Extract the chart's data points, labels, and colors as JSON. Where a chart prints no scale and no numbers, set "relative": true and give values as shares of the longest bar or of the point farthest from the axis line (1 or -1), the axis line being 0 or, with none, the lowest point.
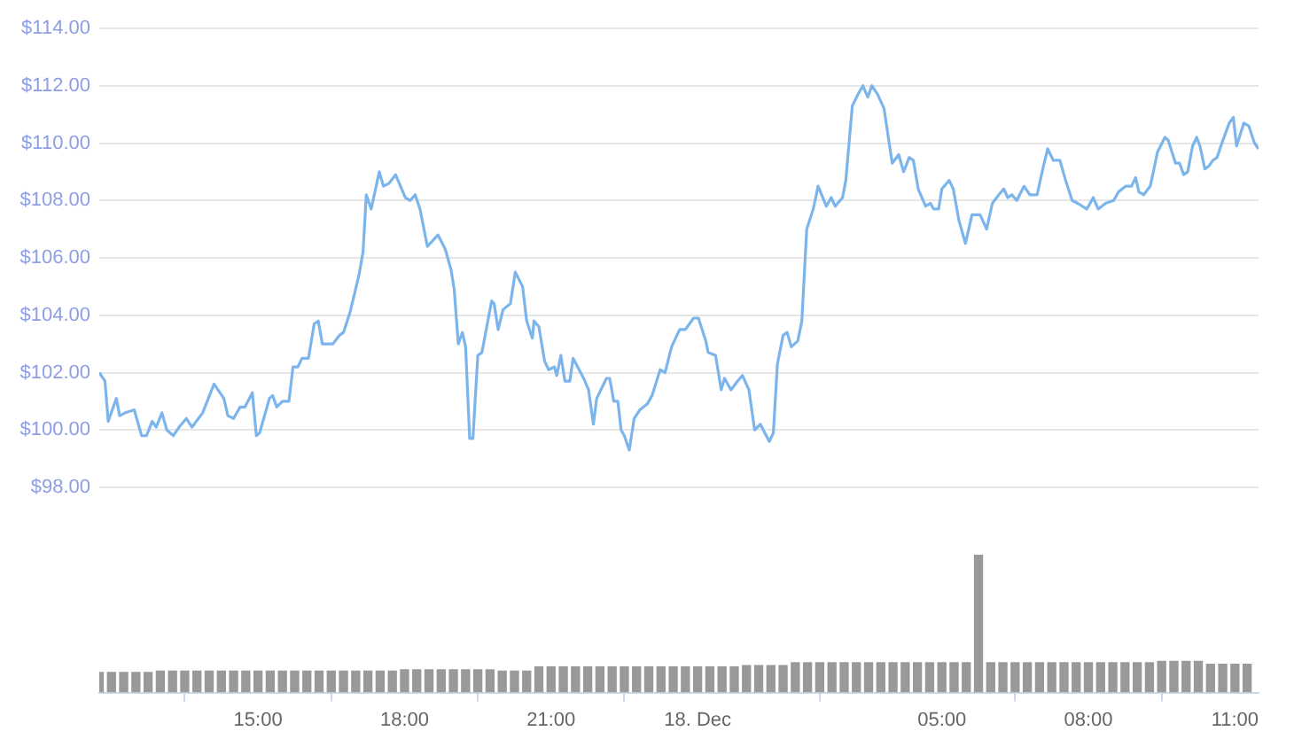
{
  "chart_data": [
    {
      "type": "line",
      "grid": "y",
      "legend": false,
      "tick_labels": "y",
      "marker": "none",
      "line_style": "solid",
      "xlim": [
        "--12-17T11:45",
        "--12-18T11:29"
      ],
      "ylim": [
        98,
        114
      ],
      "yticks": [
        {
          "value": 98,
          "label": "$98.00"
        },
        {
          "value": 100,
          "label": "$100.00"
        },
        {
          "value": 102,
          "label": "$102.00"
        },
        {
          "value": 104,
          "label": "$104.00"
        },
        {
          "value": 106,
          "label": "$106.00"
        },
        {
          "value": 108,
          "label": "$108.00"
        },
        {
          "value": 110,
          "label": "$110.00"
        },
        {
          "value": 112,
          "label": "$112.00"
        },
        {
          "value": 114,
          "label": "$114.00"
        }
      ],
      "series": [
        {
          "color": "#7cb5ec",
          "x": [
            "--12-17T11:45",
            "--12-17T11:52",
            "--12-17T11:56",
            "--12-17T12:06",
            "--12-17T12:10",
            "--12-17T12:17",
            "--12-17T12:28",
            "--12-17T12:37",
            "--12-17T12:43",
            "--12-17T12:50",
            "--12-17T12:55",
            "--12-17T13:02",
            "--12-17T13:08",
            "--12-17T13:16",
            "--12-17T13:23",
            "--12-17T13:32",
            "--12-17T13:39",
            "--12-17T13:52",
            "--12-17T14:06",
            "--12-17T14:18",
            "--12-17T14:23",
            "--12-17T14:30",
            "--12-17T14:38",
            "--12-17T14:44",
            "--12-17T14:53",
            "--12-17T14:58",
            "--12-17T15:02",
            "--12-17T15:14",
            "--12-17T15:18",
            "--12-17T15:23",
            "--12-17T15:30",
            "--12-17T15:38",
            "--12-17T15:43",
            "--12-17T15:49",
            "--12-17T15:54",
            "--12-17T16:02",
            "--12-17T16:09",
            "--12-17T16:14",
            "--12-17T16:19",
            "--12-17T16:25",
            "--12-17T16:32",
            "--12-17T16:40",
            "--12-17T16:45",
            "--12-17T16:53",
            "--12-17T17:04",
            "--12-17T17:09",
            "--12-17T17:13",
            "--12-17T17:19",
            "--12-17T17:29",
            "--12-17T17:34",
            "--12-17T17:41",
            "--12-17T17:49",
            "--12-17T18:01",
            "--12-17T18:07",
            "--12-17T18:13",
            "--12-17T18:19",
            "--12-17T18:28",
            "--12-17T18:41",
            "--12-17T18:50",
            "--12-17T18:57",
            "--12-17T19:01",
            "--12-17T19:06",
            "--12-17T19:11",
            "--12-17T19:15",
            "--12-17T19:20",
            "--12-17T19:24",
            "--12-17T19:30",
            "--12-17T19:35",
            "--12-17T19:47",
            "--12-17T19:50",
            "--12-17T19:55",
            "--12-17T20:01",
            "--12-17T20:10",
            "--12-17T20:16",
            "--12-17T20:25",
            "--12-17T20:30",
            "--12-17T20:37",
            "--12-17T20:39",
            "--12-17T20:45",
            "--12-17T20:52",
            "--12-17T20:57",
            "--12-17T21:04",
            "--12-17T21:07",
            "--12-17T21:12",
            "--12-17T21:17",
            "--12-17T21:23",
            "--12-17T21:27",
            "--12-17T21:40",
            "--12-17T21:46",
            "--12-17T21:52",
            "--12-17T21:56",
            "--12-17T22:08",
            "--12-17T22:12",
            "--12-17T22:17",
            "--12-17T22:22",
            "--12-17T22:26",
            "--12-17T22:30",
            "--12-17T22:36",
            "--12-17T22:42",
            "--12-17T22:49",
            "--12-17T22:58",
            "--12-17T23:04",
            "--12-17T23:14",
            "--12-17T23:20",
            "--12-17T23:28",
            "--12-17T23:38",
            "--12-17T23:45",
            "--12-17T23:55",
            "--12-18T00:01",
            "--12-18T00:10",
            "--12-18T00:13",
            "--12-18T00:22",
            "--12-18T00:29",
            "--12-18T00:33",
            "--12-18T00:41",
            "--12-18T00:49",
            "--12-18T00:55",
            "--12-18T01:03",
            "--12-18T01:10",
            "--12-18T01:17",
            "--12-18T01:28",
            "--12-18T01:33",
            "--12-18T01:38",
            "--12-18T01:45",
            "--12-18T01:50",
            "--12-18T01:55",
            "--12-18T02:03",
            "--12-18T02:08",
            "--12-18T02:14",
            "--12-18T02:22",
            "--12-18T02:28",
            "--12-18T02:38",
            "--12-18T02:44",
            "--12-18T02:49",
            "--12-18T02:58",
            "--12-18T03:02",
            "--12-18T03:10",
            "--12-18T03:17",
            "--12-18T03:23",
            "--12-18T03:29",
            "--12-18T03:34",
            "--12-18T03:41",
            "--12-18T03:49",
            "--12-18T03:59",
            "--12-18T04:07",
            "--12-18T04:13",
            "--12-18T04:20",
            "--12-18T04:25",
            "--12-18T04:31",
            "--12-18T04:40",
            "--12-18T04:46",
            "--12-18T04:50",
            "--12-18T04:56",
            "--12-18T05:00",
            "--12-18T05:09",
            "--12-18T05:14",
            "--12-18T05:21",
            "--12-18T05:29",
            "--12-18T05:37",
            "--12-18T05:47",
            "--12-18T05:55",
            "--12-18T06:02",
            "--12-18T06:10",
            "--12-18T06:16",
            "--12-18T06:21",
            "--12-18T06:26",
            "--12-18T06:32",
            "--12-18T06:41",
            "--12-18T06:48",
            "--12-18T06:57",
            "--12-18T07:04",
            "--12-18T07:10",
            "--12-18T07:17",
            "--12-18T07:25",
            "--12-18T07:32",
            "--12-18T07:40",
            "--12-18T07:47",
            "--12-18T07:58",
            "--12-18T08:06",
            "--12-18T08:12",
            "--12-18T08:21",
            "--12-18T08:31",
            "--12-18T08:37",
            "--12-18T08:46",
            "--12-18T08:53",
            "--12-18T08:58",
            "--12-18T09:02",
            "--12-18T09:08",
            "--12-18T09:16",
            "--12-18T09:25",
            "--12-18T09:34",
            "--12-18T09:38",
            "--12-18T09:47",
            "--12-18T09:52",
            "--12-18T09:57",
            "--12-18T10:02",
            "--12-18T10:08",
            "--12-18T10:13",
            "--12-18T10:17",
            "--12-18T10:23",
            "--12-18T10:28",
            "--12-18T10:33",
            "--12-18T10:38",
            "--12-18T10:44",
            "--12-18T10:53",
            "--12-18T10:58",
            "--12-18T11:02",
            "--12-18T11:11",
            "--12-18T11:17",
            "--12-18T11:24",
            "--12-18T11:29"
          ],
          "values": [
            102.0,
            101.7,
            100.3,
            101.1,
            100.5,
            100.6,
            100.7,
            99.8,
            99.8,
            100.3,
            100.1,
            100.6,
            100.0,
            99.8,
            100.1,
            100.4,
            100.1,
            100.6,
            101.6,
            101.1,
            100.5,
            100.4,
            100.8,
            100.8,
            101.3,
            99.8,
            99.9,
            101.1,
            101.2,
            100.8,
            101.0,
            101.0,
            102.2,
            102.2,
            102.5,
            102.5,
            103.7,
            103.8,
            103.0,
            103.0,
            103.0,
            103.3,
            103.4,
            104.1,
            105.4,
            106.2,
            108.2,
            107.7,
            109.0,
            108.5,
            108.6,
            108.9,
            108.1,
            108.0,
            108.2,
            107.7,
            106.4,
            106.8,
            106.3,
            105.6,
            104.9,
            103.0,
            103.4,
            102.9,
            99.7,
            99.7,
            102.6,
            102.7,
            104.5,
            104.4,
            103.5,
            104.2,
            104.4,
            105.5,
            105.0,
            103.8,
            103.2,
            103.8,
            103.6,
            102.4,
            102.1,
            102.2,
            101.9,
            102.6,
            101.7,
            101.7,
            102.5,
            101.8,
            101.4,
            100.2,
            101.1,
            101.8,
            101.8,
            101.0,
            101.0,
            100.0,
            99.8,
            99.3,
            100.4,
            100.7,
            100.9,
            101.2,
            102.1,
            102.0,
            102.9,
            103.5,
            103.5,
            103.9,
            103.9,
            103.1,
            102.7,
            102.6,
            101.4,
            101.8,
            101.4,
            101.7,
            101.9,
            101.4,
            100.0,
            100.2,
            99.6,
            99.9,
            102.3,
            103.3,
            103.4,
            102.9,
            103.1,
            103.8,
            107.0,
            107.7,
            108.5,
            107.8,
            108.1,
            107.8,
            108.1,
            108.7,
            111.3,
            111.7,
            112.0,
            111.6,
            112.0,
            111.7,
            111.2,
            109.3,
            109.6,
            109.0,
            109.5,
            109.4,
            108.4,
            107.8,
            107.9,
            107.7,
            107.7,
            108.4,
            108.7,
            108.4,
            107.3,
            106.5,
            107.5,
            107.5,
            107.0,
            107.9,
            108.2,
            108.4,
            108.1,
            108.2,
            108.0,
            108.5,
            108.2,
            108.2,
            109.1,
            109.8,
            109.4,
            109.4,
            108.7,
            108.0,
            107.9,
            107.7,
            108.1,
            107.7,
            107.9,
            108.0,
            108.3,
            108.5,
            108.5,
            108.8,
            108.3,
            108.2,
            108.5,
            109.7,
            110.2,
            110.1,
            109.3,
            109.3,
            108.9,
            109.0,
            109.9,
            110.2,
            109.9,
            109.1,
            109.2,
            109.4,
            109.5,
            110.0,
            110.7,
            110.9,
            109.9,
            110.7,
            110.6,
            110.0,
            109.8
          ]
        }
      ]
    },
    {
      "type": "bar",
      "relative": true,
      "grid": false,
      "legend": false,
      "tick_labels": "x",
      "xlim": [
        "--12-17T11:45",
        "--12-18T11:29"
      ],
      "xticks": [
        {
          "value": "--12-17T15:00",
          "label": "15:00"
        },
        {
          "value": "--12-17T18:00",
          "label": "18:00"
        },
        {
          "value": "--12-17T21:00",
          "label": "21:00"
        },
        {
          "value": "--12-18T00:00",
          "label": "18. Dec"
        },
        {
          "value": "--12-18T05:00",
          "label": "05:00"
        },
        {
          "value": "--12-18T08:00",
          "label": "08:00"
        },
        {
          "value": "--12-18T11:00",
          "label": "11:00"
        }
      ],
      "series": [
        {
          "color": "#999999",
          "x": [
            "--12-17T11:45",
            "--12-17T12:00",
            "--12-17T12:15",
            "--12-17T12:30",
            "--12-17T12:45",
            "--12-17T13:00",
            "--12-17T13:15",
            "--12-17T13:30",
            "--12-17T13:45",
            "--12-17T14:00",
            "--12-17T14:15",
            "--12-17T14:30",
            "--12-17T14:45",
            "--12-17T15:00",
            "--12-17T15:15",
            "--12-17T15:30",
            "--12-17T15:45",
            "--12-17T16:00",
            "--12-17T16:15",
            "--12-17T16:30",
            "--12-17T16:45",
            "--12-17T17:00",
            "--12-17T17:15",
            "--12-17T17:30",
            "--12-17T17:45",
            "--12-17T18:00",
            "--12-17T18:15",
            "--12-17T18:30",
            "--12-17T18:45",
            "--12-17T19:00",
            "--12-17T19:15",
            "--12-17T19:30",
            "--12-17T19:45",
            "--12-17T20:00",
            "--12-17T20:15",
            "--12-17T20:30",
            "--12-17T20:45",
            "--12-17T21:00",
            "--12-17T21:15",
            "--12-17T21:30",
            "--12-17T21:45",
            "--12-17T22:00",
            "--12-17T22:15",
            "--12-17T22:30",
            "--12-17T22:45",
            "--12-17T23:00",
            "--12-17T23:15",
            "--12-17T23:30",
            "--12-17T23:45",
            "--12-18T00:00",
            "--12-18T00:15",
            "--12-18T00:30",
            "--12-18T00:45",
            "--12-18T01:00",
            "--12-18T01:15",
            "--12-18T01:30",
            "--12-18T01:45",
            "--12-18T02:00",
            "--12-18T02:15",
            "--12-18T02:30",
            "--12-18T02:45",
            "--12-18T03:00",
            "--12-18T03:15",
            "--12-18T03:30",
            "--12-18T03:45",
            "--12-18T04:00",
            "--12-18T04:15",
            "--12-18T04:30",
            "--12-18T04:45",
            "--12-18T05:00",
            "--12-18T05:15",
            "--12-18T05:30",
            "--12-18T05:45",
            "--12-18T06:00",
            "--12-18T06:15",
            "--12-18T06:30",
            "--12-18T06:45",
            "--12-18T07:00",
            "--12-18T07:15",
            "--12-18T07:30",
            "--12-18T07:45",
            "--12-18T08:00",
            "--12-18T08:15",
            "--12-18T08:30",
            "--12-18T08:45",
            "--12-18T09:00",
            "--12-18T09:15",
            "--12-18T09:30",
            "--12-18T09:45",
            "--12-18T10:00",
            "--12-18T10:15",
            "--12-18T10:30",
            "--12-18T10:45",
            "--12-18T11:00",
            "--12-18T11:15"
          ],
          "values": [
            0.15,
            0.15,
            0.15,
            0.15,
            0.15,
            0.16,
            0.16,
            0.16,
            0.16,
            0.16,
            0.16,
            0.16,
            0.16,
            0.16,
            0.16,
            0.16,
            0.16,
            0.16,
            0.16,
            0.16,
            0.16,
            0.16,
            0.16,
            0.16,
            0.16,
            0.17,
            0.17,
            0.17,
            0.17,
            0.17,
            0.17,
            0.17,
            0.17,
            0.16,
            0.16,
            0.16,
            0.19,
            0.19,
            0.19,
            0.19,
            0.19,
            0.19,
            0.19,
            0.19,
            0.19,
            0.19,
            0.19,
            0.19,
            0.19,
            0.19,
            0.19,
            0.19,
            0.19,
            0.2,
            0.2,
            0.2,
            0.2,
            0.22,
            0.22,
            0.22,
            0.22,
            0.22,
            0.22,
            0.22,
            0.22,
            0.22,
            0.22,
            0.22,
            0.22,
            0.22,
            0.22,
            0.22,
            1,
            0.22,
            0.22,
            0.22,
            0.22,
            0.22,
            0.22,
            0.22,
            0.22,
            0.22,
            0.22,
            0.22,
            0.22,
            0.22,
            0.22,
            0.23,
            0.23,
            0.23,
            0.23,
            0.21,
            0.21,
            0.21,
            0.21
          ]
        }
      ]
    }
  ]
}
